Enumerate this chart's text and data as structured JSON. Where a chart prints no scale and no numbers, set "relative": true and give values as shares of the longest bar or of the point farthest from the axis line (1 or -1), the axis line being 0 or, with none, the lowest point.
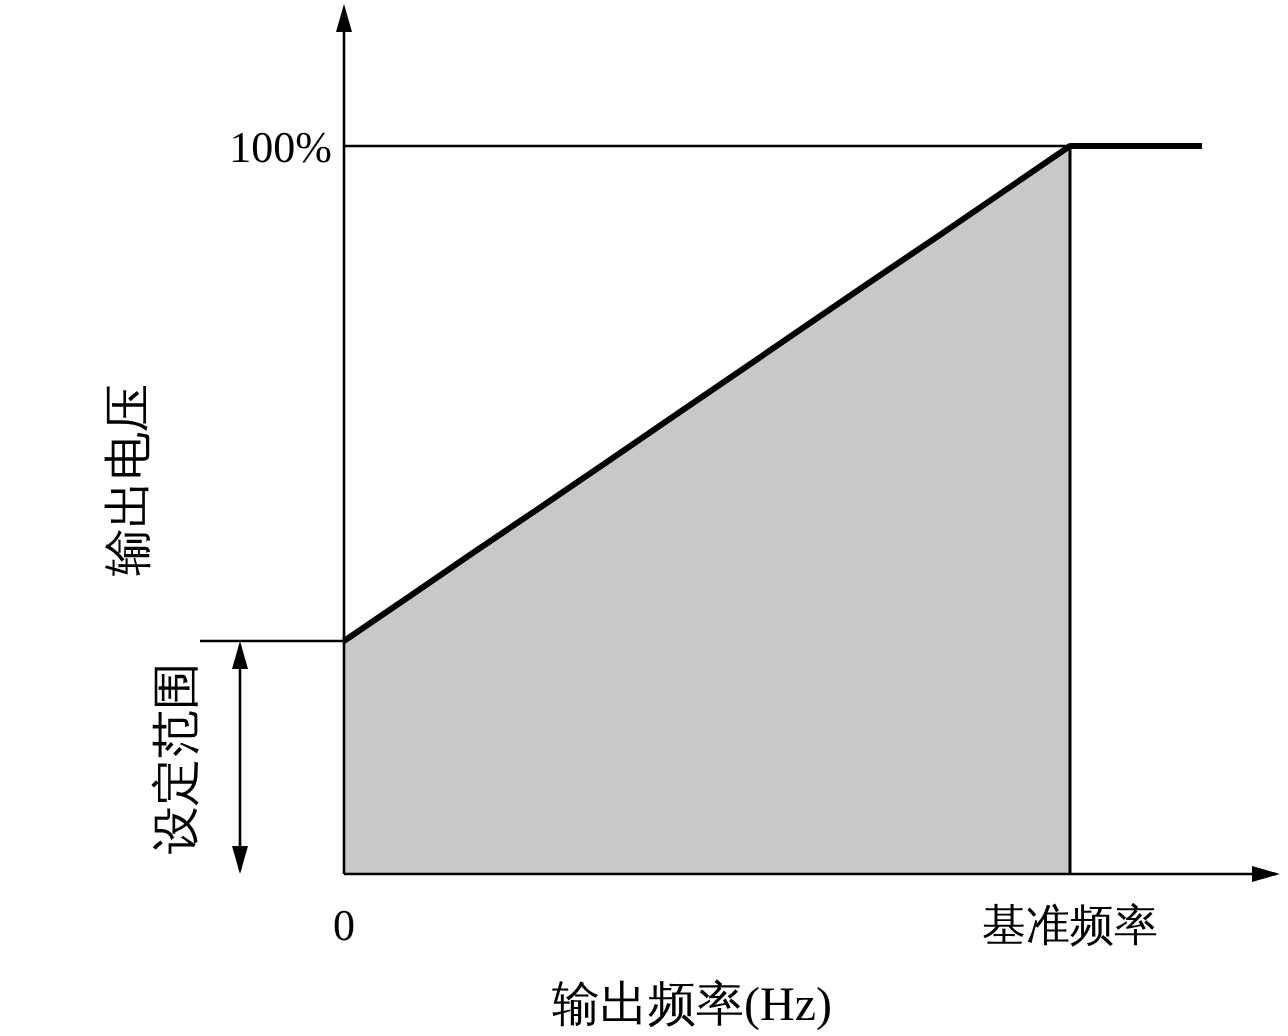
{
  "chart_data": {
    "type": "area",
    "relative": true,
    "xlabel": "输出频率(Hz)",
    "ylabel": "输出电压",
    "categories": [
      "0",
      null,
      null,
      null,
      null,
      null,
      null,
      null,
      null,
      null,
      null,
      "基准频率",
      null,
      null
    ],
    "series": [
      {
        "values": [
          0.32,
          0.382,
          0.444,
          0.505,
          0.567,
          0.629,
          0.691,
          0.753,
          0.815,
          0.876,
          0.938,
          1,
          null,
          null
        ],
        "color": "#c8c8c8"
      },
      {
        "type": "line",
        "values": [
          0.32,
          0.382,
          0.444,
          0.505,
          0.567,
          0.629,
          0.691,
          0.753,
          0.815,
          0.876,
          0.938,
          1,
          1,
          1
        ],
        "color": "#000000"
      }
    ],
    "ref_lines": [
      {
        "axis": "y",
        "value": 1,
        "label": "100%",
        "color": "#000000"
      }
    ],
    "annotations": [
      "设定范围"
    ],
    "marker": "none",
    "line_style": "solid"
  }
}
